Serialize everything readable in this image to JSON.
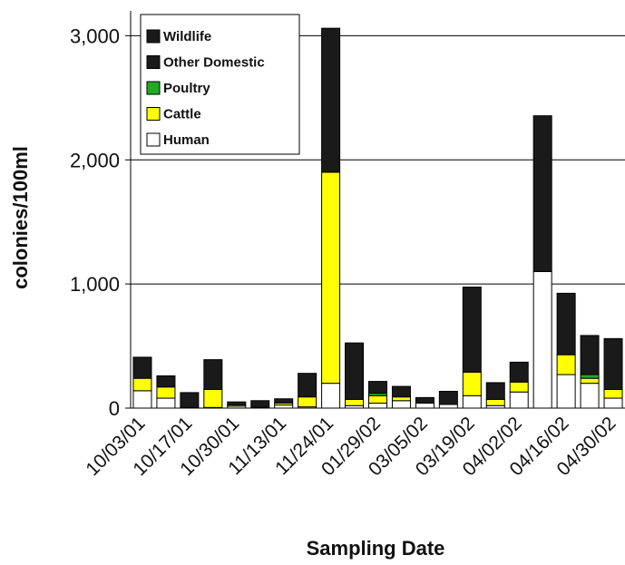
{
  "chart_data": {
    "type": "stacked-bar",
    "y_label": "colonies/100ml",
    "x_label": "Sampling Date",
    "categories": [
      "10/03/01",
      null,
      "10/17/01",
      null,
      "10/30/01",
      null,
      "11/13/01",
      null,
      "11/24/01",
      null,
      "01/29/02",
      null,
      "03/05/02",
      null,
      "03/19/02",
      null,
      "04/02/02",
      null,
      "04/16/02",
      null,
      "04/30/02"
    ],
    "series": [
      {
        "name": "Human",
        "color": "#ffffff",
        "values": [
          140,
          80,
          5,
          5,
          15,
          5,
          25,
          10,
          200,
          20,
          40,
          60,
          40,
          30,
          100,
          20,
          130,
          1100,
          270,
          200,
          80
        ]
      },
      {
        "name": "Cattle",
        "color": "#ffff00",
        "values": [
          100,
          90,
          0,
          145,
          10,
          0,
          15,
          80,
          1700,
          50,
          60,
          30,
          0,
          0,
          190,
          50,
          80,
          0,
          160,
          40,
          70
        ]
      },
      {
        "name": "Poultry",
        "color": "#22aa22",
        "values": [
          0,
          0,
          0,
          0,
          0,
          0,
          0,
          0,
          0,
          0,
          20,
          0,
          0,
          0,
          0,
          0,
          0,
          0,
          0,
          30,
          0
        ]
      },
      {
        "name": "Other Domestic",
        "color": "#1a1a1a",
        "values": [
          0,
          0,
          0,
          0,
          0,
          0,
          0,
          0,
          0,
          0,
          0,
          0,
          0,
          0,
          0,
          0,
          0,
          0,
          0,
          0,
          0
        ]
      },
      {
        "name": "Wildlife",
        "color": "#1a1a1a",
        "values": [
          170,
          90,
          120,
          240,
          25,
          55,
          35,
          190,
          1160,
          455,
          95,
          85,
          45,
          105,
          685,
          135,
          160,
          1255,
          495,
          315,
          410
        ]
      }
    ],
    "ylim": [
      0,
      3200
    ],
    "yticks": [
      0,
      {
        "value": 1000,
        "label": "1,000"
      },
      {
        "value": 2000,
        "label": "2,000"
      },
      {
        "value": 3000,
        "label": "3,000"
      }
    ],
    "grid": true
  }
}
